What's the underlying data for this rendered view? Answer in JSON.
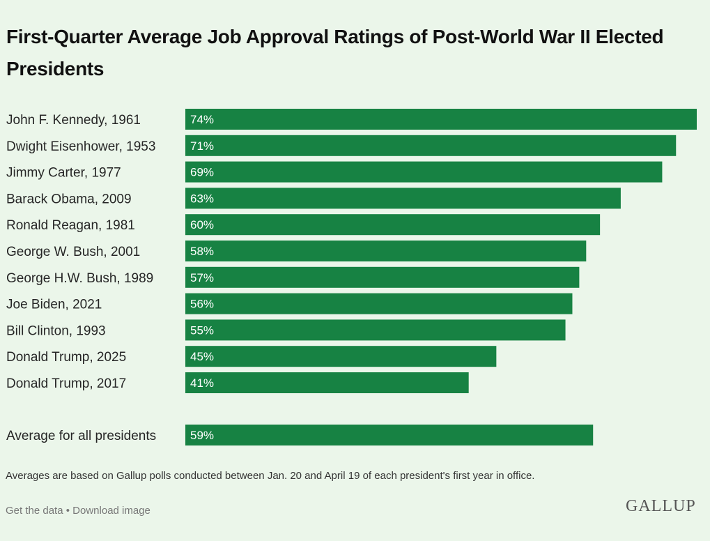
{
  "header": {
    "title": "First-Quarter Average Job Approval Ratings of Post-World War II Elected Presidents"
  },
  "chart_data": {
    "type": "bar",
    "orientation": "horizontal",
    "title": "First-Quarter Average Job Approval Ratings of Post-World War II Elected Presidents",
    "unit": "%",
    "xlim": [
      0,
      74
    ],
    "grid": false,
    "legend": "none",
    "categories": [
      "John F. Kennedy, 1961",
      "Dwight Eisenhower, 1953",
      "Jimmy Carter, 1977",
      "Barack Obama, 2009",
      "Ronald Reagan, 1981",
      "George W. Bush, 2001",
      "George H.W. Bush, 1989",
      "Joe Biden, 2021",
      "Bill Clinton, 1993",
      "Donald Trump, 2025",
      "Donald Trump, 2017"
    ],
    "values": [
      74,
      71,
      69,
      63,
      60,
      58,
      57,
      56,
      55,
      45,
      41
    ],
    "value_labels": [
      "74%",
      "71%",
      "69%",
      "63%",
      "60%",
      "58%",
      "57%",
      "56%",
      "55%",
      "45%",
      "41%"
    ],
    "average": {
      "label": "Average for all presidents",
      "value": 59,
      "value_label": "59%"
    },
    "bar_color": "#178243"
  },
  "footer": {
    "footnote": "Averages are based on Gallup polls conducted between Jan. 20 and April 19 of each president's first year in office.",
    "get_data": "Get the data",
    "separator": "•",
    "download": "Download image",
    "logo": "GALLUP"
  },
  "colors": {
    "background": "#ebf6ea",
    "bar": "#178243"
  }
}
